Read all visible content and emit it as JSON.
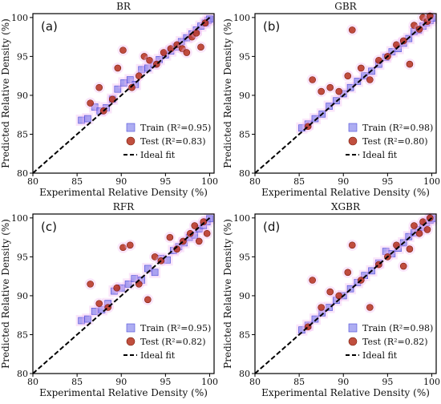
{
  "chart_data": [
    {
      "type": "scatter",
      "title": "BR",
      "panel_label": "(a)",
      "xlabel": "Experimental Relative Density (%)",
      "ylabel": "Predicted Relative Density (%)",
      "xlim": [
        80,
        100.5
      ],
      "ylim": [
        80,
        100.5
      ],
      "xticks": [
        "80",
        "85",
        "90",
        "95",
        "100"
      ],
      "yticks": [
        "80",
        "85",
        "90",
        "95",
        "100"
      ],
      "grid": false,
      "legend_position": "lower-right",
      "series": [
        {
          "name": "Train (R²=0.95)",
          "marker": "square",
          "color": "#6a6ae8",
          "x": [
            85.5,
            86.2,
            87.0,
            87.6,
            88.3,
            89.0,
            89.6,
            90.3,
            91.0,
            91.6,
            92.3,
            93.0,
            93.7,
            94.3,
            95.0,
            95.6,
            96.2,
            96.8,
            97.4,
            98.0,
            98.5,
            99.0,
            99.5,
            99.8,
            100.0
          ],
          "y": [
            86.8,
            87.0,
            88.5,
            88.0,
            88.4,
            89.5,
            90.8,
            91.6,
            92.0,
            91.4,
            93.3,
            93.5,
            94.0,
            94.6,
            95.2,
            95.7,
            96.2,
            96.9,
            97.4,
            97.9,
            98.4,
            98.9,
            99.3,
            99.6,
            99.8
          ]
        },
        {
          "name": "Test (R²=0.83)",
          "marker": "circle",
          "color": "#b5301c",
          "x": [
            86.5,
            87.5,
            88.0,
            89.0,
            89.6,
            90.2,
            91.2,
            92.0,
            92.6,
            93.2,
            94.0,
            94.8,
            95.6,
            96.3,
            96.9,
            97.4,
            98.0,
            98.5,
            99.0,
            99.5
          ],
          "y": [
            89.0,
            91.0,
            88.0,
            89.5,
            93.5,
            95.8,
            91.0,
            92.5,
            95.0,
            94.5,
            94.0,
            95.5,
            96.0,
            96.5,
            96.0,
            95.5,
            97.5,
            98.0,
            96.2,
            99.3
          ]
        }
      ],
      "reference_line": {
        "name": "Ideal fit",
        "x": [
          80,
          100
        ],
        "y": [
          80,
          100
        ]
      }
    },
    {
      "type": "scatter",
      "title": "GBR",
      "panel_label": "(b)",
      "xlabel": "Experimental Relative Density (%)",
      "ylabel": "Predicted Relative Density (%)",
      "xlim": [
        80,
        100.5
      ],
      "ylim": [
        80,
        100.5
      ],
      "xticks": [
        "80",
        "85",
        "90",
        "95",
        "100"
      ],
      "yticks": [
        "80",
        "85",
        "90",
        "95",
        "100"
      ],
      "grid": false,
      "legend_position": "lower-right",
      "series": [
        {
          "name": "Train (R²=0.98)",
          "marker": "square",
          "color": "#6a6ae8",
          "x": [
            85.3,
            86.0,
            86.8,
            87.6,
            88.4,
            89.2,
            90.0,
            90.8,
            91.6,
            92.4,
            93.2,
            94.0,
            94.8,
            95.5,
            96.2,
            96.8,
            97.4,
            98.0,
            98.5,
            99.0,
            99.4,
            99.8,
            100.0
          ],
          "y": [
            85.8,
            86.3,
            87.0,
            87.6,
            88.6,
            89.3,
            90.2,
            91.0,
            91.8,
            92.5,
            93.1,
            94.0,
            94.9,
            95.6,
            96.0,
            96.7,
            97.3,
            98.2,
            98.4,
            98.9,
            99.3,
            99.6,
            99.9
          ]
        },
        {
          "name": "Test (R²=0.80)",
          "marker": "circle",
          "color": "#b5301c",
          "x": [
            86.0,
            86.5,
            87.5,
            88.5,
            89.5,
            90.5,
            91.0,
            92.0,
            93.0,
            94.0,
            95.0,
            96.0,
            96.8,
            97.5,
            98.0,
            98.6,
            99.0,
            99.5,
            99.8
          ],
          "y": [
            86.0,
            92.0,
            90.5,
            91.0,
            90.5,
            92.5,
            98.4,
            93.5,
            92.0,
            94.5,
            95.0,
            96.5,
            97.0,
            94.0,
            99.0,
            98.5,
            100.0,
            99.5,
            100.2
          ]
        }
      ],
      "reference_line": {
        "name": "Ideal fit",
        "x": [
          80,
          100
        ],
        "y": [
          80,
          100
        ]
      }
    },
    {
      "type": "scatter",
      "title": "RFR",
      "panel_label": "(c)",
      "xlabel": "Experimental Relative Density (%)",
      "ylabel": "Predicted Relative Density (%)",
      "xlim": [
        80,
        100.5
      ],
      "ylim": [
        80,
        100.5
      ],
      "xticks": [
        "80",
        "85",
        "90",
        "95",
        "100"
      ],
      "yticks": [
        "80",
        "85",
        "90",
        "95",
        "100"
      ],
      "grid": false,
      "legend_position": "lower-right",
      "series": [
        {
          "name": "Train (R²=0.95)",
          "marker": "square",
          "color": "#6a6ae8",
          "x": [
            85.5,
            86.2,
            87.0,
            87.8,
            88.5,
            89.2,
            90.0,
            90.8,
            91.5,
            92.3,
            93.0,
            93.8,
            94.5,
            95.2,
            95.9,
            96.5,
            97.1,
            97.7,
            98.3,
            98.8,
            99.3,
            99.7,
            100.0
          ],
          "y": [
            86.8,
            87.0,
            88.0,
            88.2,
            89.0,
            90.6,
            91.0,
            91.5,
            92.2,
            92.0,
            93.5,
            93.0,
            94.8,
            94.6,
            95.8,
            96.3,
            96.8,
            97.5,
            97.8,
            98.6,
            99.0,
            99.5,
            99.9
          ]
        },
        {
          "name": "Test (R²=0.82)",
          "marker": "circle",
          "color": "#b5301c",
          "x": [
            86.5,
            87.5,
            88.5,
            89.5,
            90.2,
            91.0,
            92.0,
            93.0,
            93.8,
            94.5,
            95.5,
            96.3,
            97.0,
            97.8,
            98.3,
            98.8,
            99.3,
            99.7
          ],
          "y": [
            91.5,
            89.0,
            88.5,
            91.0,
            96.2,
            96.5,
            91.5,
            89.5,
            95.0,
            94.5,
            97.5,
            96.0,
            97.0,
            98.0,
            99.0,
            97.0,
            99.5,
            98.0
          ]
        }
      ],
      "reference_line": {
        "name": "Ideal fit",
        "x": [
          80,
          100
        ],
        "y": [
          80,
          100
        ]
      }
    },
    {
      "type": "scatter",
      "title": "XGBR",
      "panel_label": "(d)",
      "xlabel": "Experimental Relative Density (%)",
      "ylabel": "Predicted Relative Density (%)",
      "xlim": [
        80,
        100.5
      ],
      "ylim": [
        80,
        100.5
      ],
      "xticks": [
        "80",
        "85",
        "90",
        "95",
        "100"
      ],
      "yticks": [
        "80",
        "85",
        "90",
        "95",
        "100"
      ],
      "grid": false,
      "legend_position": "lower-right",
      "series": [
        {
          "name": "Train (R²=0.98)",
          "marker": "square",
          "color": "#6a6ae8",
          "x": [
            85.3,
            86.0,
            86.8,
            87.6,
            88.4,
            89.2,
            90.0,
            90.8,
            91.6,
            92.4,
            93.2,
            94.0,
            94.8,
            95.5,
            96.2,
            96.8,
            97.4,
            98.0,
            98.5,
            99.0,
            99.4,
            99.8,
            100.0
          ],
          "y": [
            85.6,
            86.2,
            87.0,
            87.8,
            88.5,
            89.4,
            90.0,
            90.9,
            91.7,
            92.6,
            93.2,
            94.2,
            95.7,
            95.4,
            96.1,
            96.8,
            97.6,
            98.1,
            98.5,
            98.8,
            99.4,
            99.7,
            99.9
          ]
        },
        {
          "name": "Test (R²=0.82)",
          "marker": "circle",
          "color": "#b5301c",
          "x": [
            86.0,
            86.5,
            87.5,
            88.5,
            89.5,
            90.5,
            91.0,
            92.0,
            93.0,
            94.0,
            95.0,
            96.0,
            96.8,
            97.5,
            98.0,
            98.6,
            99.0,
            99.5,
            99.8
          ],
          "y": [
            86.0,
            92.0,
            88.5,
            90.5,
            90.0,
            93.0,
            96.5,
            92.0,
            88.5,
            94.0,
            95.0,
            96.5,
            93.8,
            96.0,
            99.0,
            98.0,
            99.5,
            98.5,
            100.0
          ]
        }
      ],
      "reference_line": {
        "name": "Ideal fit",
        "x": [
          80,
          100
        ],
        "y": [
          80,
          100
        ]
      }
    }
  ]
}
